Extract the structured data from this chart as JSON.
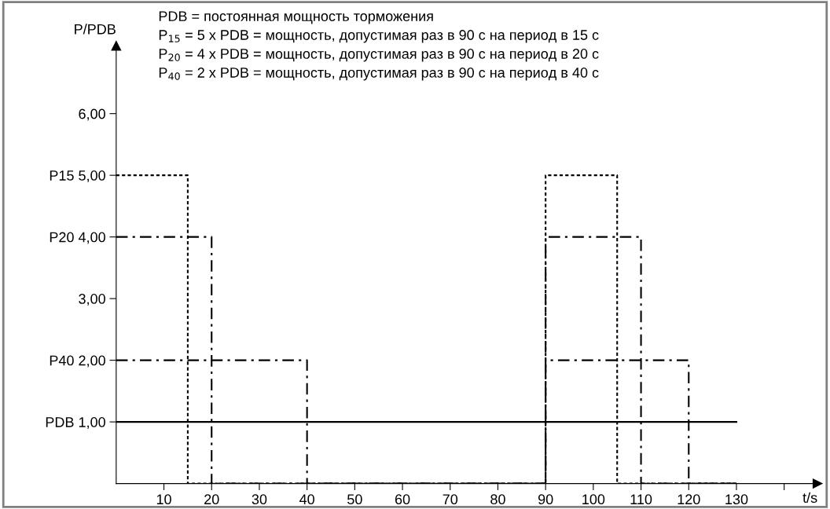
{
  "chart_data": {
    "type": "step",
    "ylabel": "P/PDB",
    "xlabel": "t/s",
    "annotations": [
      "PDB = постоянная мощность торможения",
      "P$_{15}$ = 5 x PDB = мощность, допустимая раз в 90 с на период в 15 с",
      "P$_{20}$ = 4 x PDB = мощность, допустимая раз в 90 с на период в 20 с",
      "P$_{40}$ = 2 x PDB = мощность, допустимая раз в 90 с на период в 40 с"
    ],
    "series": [
      {
        "color": "#000000",
        "line_style": "dotted",
        "x": [
          0,
          15,
          90,
          105,
          130
        ],
        "values": [
          5,
          0,
          5,
          0,
          0
        ]
      },
      {
        "color": "#000000",
        "line_style": "dashed",
        "x": [
          0,
          20,
          90,
          110,
          130
        ],
        "values": [
          4,
          0,
          4,
          0,
          0
        ]
      },
      {
        "color": "#000000",
        "line_style": "dashed",
        "x": [
          0,
          40,
          90,
          120,
          130
        ],
        "values": [
          2,
          0,
          2,
          0,
          0
        ]
      },
      {
        "color": "#000000",
        "line_style": "solid",
        "x": [
          0,
          130
        ],
        "values": [
          1,
          1
        ]
      }
    ],
    "xlim": [
      0,
      147
    ],
    "ylim": [
      0,
      7.1
    ],
    "xticks": [
      10,
      20,
      30,
      40,
      50,
      60,
      70,
      80,
      90,
      100,
      110,
      120,
      130,
      {
        "value": 140,
        "label": null
      }
    ],
    "yticks": [
      {
        "value": 1,
        "label": "PDB 1,00"
      },
      {
        "value": 2,
        "label": "P40 2,00"
      },
      {
        "value": 3,
        "label": "3,00"
      },
      {
        "value": 4,
        "label": "P20 4,00"
      },
      {
        "value": 5,
        "label": "P15 5,00"
      },
      {
        "value": 6,
        "label": "6,00"
      }
    ],
    "grid": false,
    "legend": false
  }
}
